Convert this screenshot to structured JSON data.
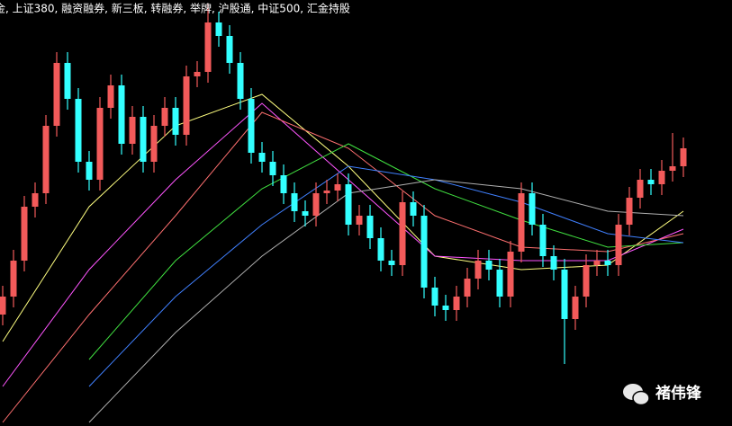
{
  "chart_data": {
    "type": "candlestick",
    "title": "金, 上证380, 融资融券, 新三板, 转融券, 举牌, 沪股通, 中证500, 汇金持股",
    "watermark": "褚伟锋",
    "ylim": [
      0,
      474
    ],
    "xlim": [
      0,
      63
    ],
    "up_color": "#f25a5a",
    "down_color": "#33ffff",
    "open": [
      124,
      144,
      184,
      244,
      259,
      334,
      404,
      364,
      294,
      274,
      354,
      379,
      314,
      344,
      294,
      334,
      354,
      324,
      389,
      394,
      449,
      434,
      404,
      364,
      304,
      294,
      279,
      259,
      239,
      234,
      259,
      262,
      269,
      224,
      234,
      209,
      184,
      179,
      249,
      234,
      154,
      134,
      129,
      144,
      164,
      184,
      174,
      144,
      194,
      259,
      224,
      189,
      174,
      119,
      144,
      179,
      184,
      179,
      224,
      254,
      274,
      269,
      284,
      289
    ],
    "high": [
      156,
      196,
      256,
      271,
      346,
      416,
      416,
      376,
      306,
      366,
      391,
      391,
      356,
      356,
      346,
      366,
      366,
      401,
      406,
      470,
      461,
      446,
      416,
      376,
      316,
      306,
      291,
      271,
      251,
      271,
      274,
      281,
      281,
      246,
      246,
      221,
      196,
      261,
      261,
      246,
      166,
      146,
      156,
      176,
      196,
      196,
      186,
      206,
      271,
      271,
      236,
      201,
      186,
      156,
      191,
      196,
      196,
      236,
      266,
      286,
      286,
      296,
      326,
      321
    ],
    "low": [
      112,
      132,
      172,
      232,
      247,
      322,
      352,
      282,
      262,
      262,
      342,
      302,
      302,
      282,
      282,
      322,
      312,
      312,
      377,
      382,
      422,
      392,
      352,
      292,
      282,
      267,
      247,
      227,
      222,
      222,
      247,
      250,
      212,
      212,
      197,
      172,
      167,
      167,
      222,
      142,
      122,
      117,
      117,
      132,
      152,
      162,
      132,
      132,
      182,
      212,
      177,
      162,
      69,
      107,
      132,
      167,
      167,
      167,
      212,
      242,
      257,
      257,
      272,
      277
    ],
    "close": [
      144,
      184,
      244,
      259,
      334,
      404,
      364,
      294,
      274,
      354,
      379,
      314,
      344,
      294,
      334,
      354,
      324,
      389,
      394,
      449,
      434,
      404,
      364,
      304,
      294,
      279,
      259,
      239,
      234,
      259,
      262,
      269,
      224,
      234,
      209,
      184,
      179,
      249,
      234,
      154,
      134,
      129,
      144,
      164,
      184,
      174,
      144,
      194,
      259,
      224,
      189,
      174,
      119,
      144,
      179,
      184,
      179,
      224,
      254,
      274,
      269,
      284,
      289,
      309
    ],
    "lines": {
      "x": [
        0,
        8,
        16,
        24,
        32,
        40,
        48,
        56,
        63
      ],
      "series": [
        {
          "color": "#ffff80",
          "values": [
            94,
            244,
            334,
            369,
            289,
            189,
            174,
            179,
            239
          ]
        },
        {
          "color": "#ff55ff",
          "values": [
            44,
            174,
            274,
            359,
            274,
            189,
            184,
            184,
            219
          ]
        },
        {
          "color": "#ff7070",
          "values": [
            4,
            124,
            234,
            349,
            309,
            234,
            199,
            194,
            214
          ]
        },
        {
          "color": "#40e040",
          "values": [
            null,
            74,
            184,
            264,
            314,
            264,
            229,
            199,
            204
          ]
        },
        {
          "color": "#4080ff",
          "values": [
            null,
            44,
            144,
            224,
            289,
            274,
            249,
            214,
            204
          ]
        },
        {
          "color": "#b0b0b0",
          "values": [
            null,
            4,
            104,
            189,
            259,
            274,
            264,
            239,
            234
          ]
        }
      ]
    }
  }
}
